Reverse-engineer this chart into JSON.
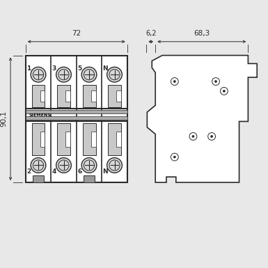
{
  "bg_color": "#e8e8e8",
  "line_color": "#2a2a2a",
  "dim_color": "#2a2a2a",
  "fill_white": "#ffffff",
  "fill_light": "#c8c8c8",
  "fill_mid": "#b0b0b0",
  "dim_72": "72",
  "dim_90": "90,1",
  "dim_6_2": "6,2",
  "dim_68_3": "68,3",
  "labels_top": [
    "1",
    "3",
    "5",
    "N"
  ],
  "labels_bottom": [
    "2",
    "4",
    "6",
    "N"
  ],
  "siemens_text": "SIEMENS"
}
